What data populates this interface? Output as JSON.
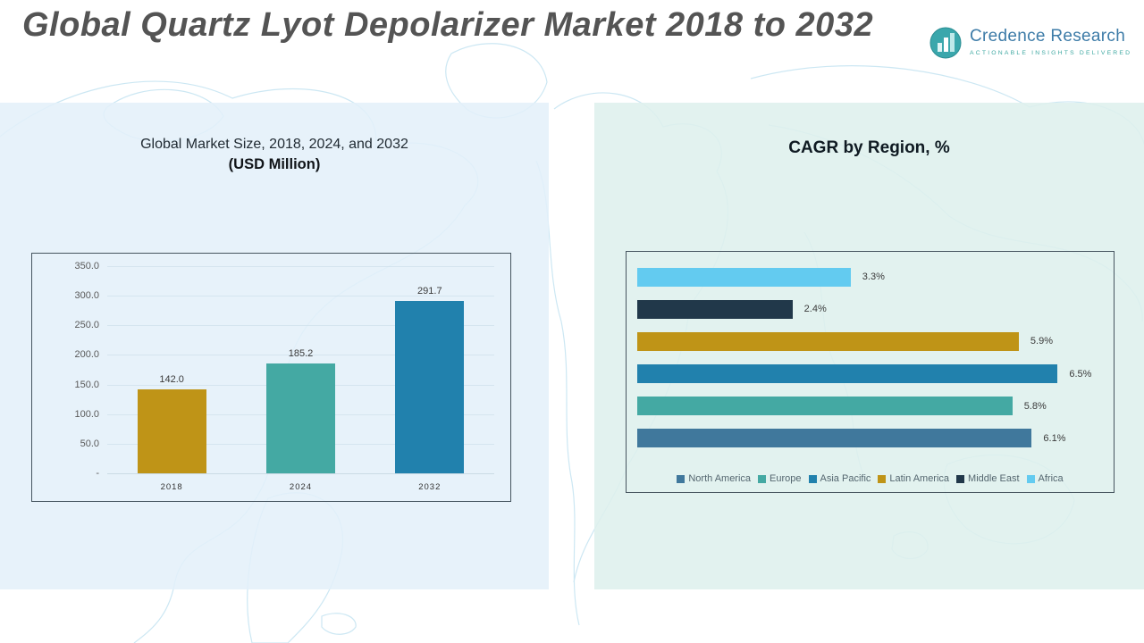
{
  "page": {
    "title": "Global Quartz Lyot Depolarizer Market 2018 to 2032"
  },
  "logo": {
    "name": "Credence Research",
    "tagline": "ACTIONABLE INSIGHTS DELIVERED",
    "icon_color": "#3AA7AC",
    "name_color": "#3E7CA8"
  },
  "chart_data": [
    {
      "id": "market-size",
      "type": "bar",
      "title": "Global Market Size, 2018, 2024, and 2032",
      "subtitle": "(USD Million)",
      "categories": [
        "2018",
        "2024",
        "2032"
      ],
      "values": [
        142.0,
        185.2,
        291.7
      ],
      "value_labels": [
        "142.0",
        "185.2",
        "291.7"
      ],
      "bar_colors": [
        "#BF9417",
        "#44A9A3",
        "#2181AD"
      ],
      "xlabel": "",
      "ylabel": "",
      "ylim": [
        0,
        350
      ],
      "grid": true,
      "yticks": [
        {
          "v": 0,
          "label": "-"
        },
        {
          "v": 50,
          "label": "50.0"
        },
        {
          "v": 100,
          "label": "100.0"
        },
        {
          "v": 150,
          "label": "150.0"
        },
        {
          "v": 200,
          "label": "200.0"
        },
        {
          "v": 250,
          "label": "250.0"
        },
        {
          "v": 300,
          "label": "300.0"
        },
        {
          "v": 350,
          "label": "350.0"
        }
      ]
    },
    {
      "id": "cagr-by-region",
      "type": "bar",
      "orientation": "horizontal",
      "title": "CAGR by Region, %",
      "xmax": 7.2,
      "rows": [
        {
          "region": "Africa",
          "value": 3.3,
          "label": "3.3%",
          "color": "#63CBF0"
        },
        {
          "region": "Middle East",
          "value": 2.4,
          "label": "2.4%",
          "color": "#21384A"
        },
        {
          "region": "Latin America",
          "value": 5.9,
          "label": "5.9%",
          "color": "#BF9417"
        },
        {
          "region": "Asia Pacific",
          "value": 6.5,
          "label": "6.5%",
          "color": "#2181AD"
        },
        {
          "region": "Europe",
          "value": 5.8,
          "label": "5.8%",
          "color": "#44A9A3"
        },
        {
          "region": "North America",
          "value": 6.1,
          "label": "6.1%",
          "color": "#40789C"
        }
      ],
      "legend_position": "bottom",
      "legend": [
        {
          "label": "North America",
          "color": "#40789C"
        },
        {
          "label": "Europe",
          "color": "#44A9A3"
        },
        {
          "label": "Asia Pacific",
          "color": "#2181AD"
        },
        {
          "label": "Latin America",
          "color": "#BF9417"
        },
        {
          "label": "Middle East",
          "color": "#21384A"
        },
        {
          "label": "Africa",
          "color": "#63CBF0"
        }
      ]
    }
  ]
}
